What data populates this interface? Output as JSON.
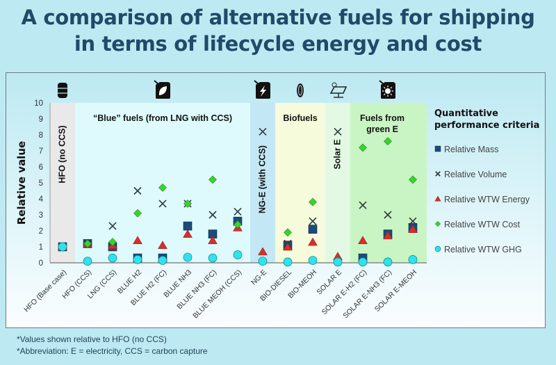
{
  "title_line1": "A comparison of alternative fuels for shipping",
  "title_line2": "in terms of lifecycle energy and cost",
  "footnotes": [
    "*Values shown relative to HFO (no CCS)",
    "*Abbreviation: E = electricity, CCS = carbon capture"
  ],
  "chart_data": {
    "type": "scatter",
    "title": "A comparison of alternative fuels for shipping in terms of lifecycle energy and cost",
    "xlabel": "",
    "ylabel": "Relative value",
    "ylim": [
      0,
      10
    ],
    "yticks": [
      0,
      1,
      2,
      3,
      4,
      5,
      6,
      7,
      8,
      9,
      10
    ],
    "grid": false,
    "legend_title": "Quantitative performance criteria",
    "legend_position": "right",
    "categories": [
      "HFO (Base case)",
      "HFO (CCS)",
      "LNG (CCS)",
      "BLUE H2",
      "BLUE H2 (FC)",
      "BLUE NH3",
      "BLUE NH3 (FC)",
      "BLUE MEOH (CCS)",
      "NG-E",
      "BIO-DIESEL",
      "BIO-MEOH",
      "SOLAR E",
      "SOLAR E-H2 (FC)",
      "SOLAR E-NH3 (FC)",
      "SOLAR E-MEOH"
    ],
    "groups": [
      {
        "label": "HFO (no CCS)",
        "orientation": "vertical",
        "from": 0,
        "to": 0,
        "color": "#e9e9e9",
        "icon": "oil-barrel-icon"
      },
      {
        "label": "“Blue” fuels (from LNG with CCS)",
        "orientation": "horizontal",
        "from": 1,
        "to": 7,
        "color": "#defafc",
        "icon": "leaf-fuel-can-icon"
      },
      {
        "label": "NG-E (with CCS)",
        "orientation": "vertical",
        "from": 8,
        "to": 8,
        "color": "#c3e7f5",
        "icon": "lightning-fuel-can-icon"
      },
      {
        "label": "Biofuels",
        "orientation": "horizontal",
        "from": 9,
        "to": 10,
        "color": "#f6fbdc",
        "icon": "corn-icon"
      },
      {
        "label": "Solar E",
        "orientation": "vertical",
        "from": 11,
        "to": 11,
        "color": "#e3f9e3",
        "icon": "solar-panel-icon"
      },
      {
        "label": "Fuels from green E",
        "orientation": "horizontal",
        "from": 12,
        "to": 14,
        "color": "#c9f5c4",
        "icon": "sun-fuel-can-icon"
      }
    ],
    "series": [
      {
        "name": "Relative Mass",
        "marker": "square",
        "color": "#1c4b7c",
        "values": [
          1.0,
          1.2,
          1.0,
          0.3,
          0.3,
          2.3,
          1.8,
          2.6,
          null,
          1.1,
          2.1,
          null,
          0.3,
          1.8,
          2.2
        ]
      },
      {
        "name": "Relative Volume",
        "marker": "x",
        "color": "#2a3b3f",
        "values": [
          1.0,
          1.2,
          2.3,
          4.5,
          3.7,
          3.7,
          3.0,
          3.2,
          8.2,
          1.2,
          2.6,
          8.2,
          3.6,
          3.0,
          2.6
        ]
      },
      {
        "name": "Relative WTW Energy",
        "marker": "triangle",
        "color": "#d4302a",
        "values": [
          1.0,
          1.2,
          1.1,
          1.4,
          1.1,
          1.8,
          1.4,
          2.2,
          0.7,
          1.0,
          1.3,
          0.4,
          1.4,
          1.7,
          2.1
        ]
      },
      {
        "name": "Relative WTW Cost",
        "marker": "diamond",
        "color": "#3ad22e",
        "values": [
          1.0,
          1.2,
          1.3,
          3.1,
          4.7,
          3.7,
          5.2,
          2.4,
          null,
          1.9,
          3.8,
          null,
          7.2,
          7.6,
          5.2
        ]
      },
      {
        "name": "Relative WTW GHG",
        "marker": "circle",
        "color": "#2ee3ec",
        "values": [
          1.0,
          0.1,
          0.3,
          0.2,
          0.15,
          0.35,
          0.3,
          0.5,
          0.1,
          0.05,
          0.15,
          0.05,
          0.05,
          0.05,
          0.2
        ]
      }
    ]
  }
}
